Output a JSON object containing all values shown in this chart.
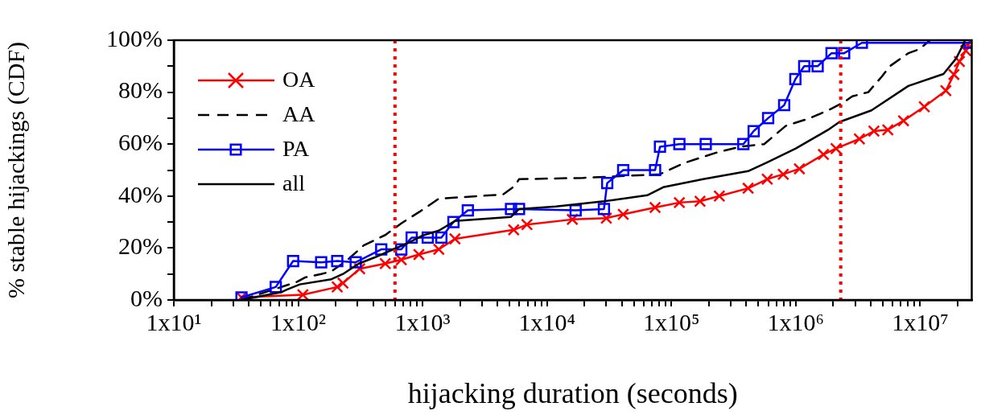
{
  "chart_data": {
    "type": "line",
    "xlabel": "hijacking duration (seconds)",
    "ylabel": "% stable hijackings (CDF)",
    "log": "x",
    "xlim": [
      10,
      26000000
    ],
    "ylim": [
      0,
      100
    ],
    "xticks": [
      {
        "value": 10,
        "label": "1x10¹"
      },
      {
        "value": 20,
        "label": null
      },
      {
        "value": 30,
        "label": null
      },
      {
        "value": 40,
        "label": null
      },
      {
        "value": 50,
        "label": null
      },
      {
        "value": 60,
        "label": null
      },
      {
        "value": 70,
        "label": null
      },
      {
        "value": 80,
        "label": null
      },
      {
        "value": 90,
        "label": null
      },
      {
        "value": 100,
        "label": "1x10²"
      },
      {
        "value": 200,
        "label": null
      },
      {
        "value": 300,
        "label": null
      },
      {
        "value": 400,
        "label": null
      },
      {
        "value": 500,
        "label": null
      },
      {
        "value": 600,
        "label": null
      },
      {
        "value": 700,
        "label": null
      },
      {
        "value": 800,
        "label": null
      },
      {
        "value": 900,
        "label": null
      },
      {
        "value": 1000,
        "label": "1x10³"
      },
      {
        "value": 2000,
        "label": null
      },
      {
        "value": 3000,
        "label": null
      },
      {
        "value": 4000,
        "label": null
      },
      {
        "value": 5000,
        "label": null
      },
      {
        "value": 6000,
        "label": null
      },
      {
        "value": 7000,
        "label": null
      },
      {
        "value": 8000,
        "label": null
      },
      {
        "value": 9000,
        "label": null
      },
      {
        "value": 10000,
        "label": "1x10⁴"
      },
      {
        "value": 20000,
        "label": null
      },
      {
        "value": 30000,
        "label": null
      },
      {
        "value": 40000,
        "label": null
      },
      {
        "value": 50000,
        "label": null
      },
      {
        "value": 60000,
        "label": null
      },
      {
        "value": 70000,
        "label": null
      },
      {
        "value": 80000,
        "label": null
      },
      {
        "value": 90000,
        "label": null
      },
      {
        "value": 100000,
        "label": "1x10⁵"
      },
      {
        "value": 200000,
        "label": null
      },
      {
        "value": 300000,
        "label": null
      },
      {
        "value": 400000,
        "label": null
      },
      {
        "value": 500000,
        "label": null
      },
      {
        "value": 600000,
        "label": null
      },
      {
        "value": 700000,
        "label": null
      },
      {
        "value": 800000,
        "label": null
      },
      {
        "value": 900000,
        "label": null
      },
      {
        "value": 1000000,
        "label": "1x10⁶"
      },
      {
        "value": 2000000,
        "label": null
      },
      {
        "value": 3000000,
        "label": null
      },
      {
        "value": 4000000,
        "label": null
      },
      {
        "value": 5000000,
        "label": null
      },
      {
        "value": 6000000,
        "label": null
      },
      {
        "value": 7000000,
        "label": null
      },
      {
        "value": 8000000,
        "label": null
      },
      {
        "value": 9000000,
        "label": null
      },
      {
        "value": 10000000,
        "label": "1x10⁷"
      },
      {
        "value": 20000000,
        "label": null
      }
    ],
    "yticks": [
      {
        "value": 0,
        "label": "0%"
      },
      {
        "value": 10,
        "label": null
      },
      {
        "value": 20,
        "label": "20%"
      },
      {
        "value": 30,
        "label": null
      },
      {
        "value": 40,
        "label": "40%"
      },
      {
        "value": 50,
        "label": null
      },
      {
        "value": 60,
        "label": "60%"
      },
      {
        "value": 70,
        "label": null
      },
      {
        "value": 80,
        "label": "80%"
      },
      {
        "value": 90,
        "label": null
      },
      {
        "value": 100,
        "label": "100%"
      }
    ],
    "grid": false,
    "legend": "top left",
    "ref_lines": [
      {
        "axis": "x",
        "value": 600,
        "color": "#ff0000",
        "line_style": "dotted"
      },
      {
        "axis": "x",
        "value": 2300000,
        "color": "#ff0000",
        "line_style": "dotted"
      }
    ],
    "series": [
      {
        "name": "OA",
        "color": "#ff0000",
        "marker": "cross",
        "line_style": "solid",
        "x": [
          35,
          109,
          206,
          229,
          312,
          501,
          674,
          934,
          1350,
          1820,
          5400,
          6900,
          16000,
          30000,
          41000,
          74000,
          116000,
          170000,
          243000,
          414000,
          590000,
          794000,
          1070000,
          1670000,
          2110000,
          3250000,
          4250000,
          5500000,
          7350000,
          10800000,
          16100000,
          18700000,
          20700000,
          23300000,
          25200000
        ],
        "values": [
          1,
          2,
          5,
          6.5,
          12,
          14,
          15.5,
          17.5,
          19.5,
          23.5,
          27,
          29,
          31,
          31.5,
          33,
          35.6,
          37.5,
          38,
          40,
          43,
          46.5,
          48.4,
          50.5,
          56,
          58.3,
          62,
          65,
          65.5,
          69,
          74.4,
          80.6,
          86.8,
          91.8,
          96,
          99.5
        ]
      },
      {
        "name": "AA",
        "color": "#000000",
        "marker": "none",
        "line_style": "dashed",
        "x": [
          35,
          98,
          114,
          153,
          185,
          250,
          336,
          501,
          674,
          949,
          1350,
          4430,
          5530,
          5960,
          19500,
          81000,
          126000,
          229000,
          357000,
          557000,
          830000,
          1300000,
          1820000,
          2450000,
          2850000,
          3830000,
          4920000,
          5710000,
          8040000,
          9900000,
          12000000
        ],
        "values": [
          0,
          7,
          8.7,
          10,
          11,
          15.5,
          21,
          25,
          29.5,
          34,
          39,
          40.6,
          44,
          46.5,
          47,
          48.4,
          52.7,
          56.7,
          59,
          60,
          67,
          70,
          73,
          76.2,
          78.4,
          80,
          86,
          90,
          95,
          96.6,
          100
        ]
      },
      {
        "name": "PA",
        "color": "#0000ff",
        "marker": "square",
        "line_style": "solid",
        "x": [
          35,
          66,
          91,
          153,
          206,
          290,
          465,
          674,
          817,
          1100,
          1415,
          1770,
          2310,
          5140,
          5960,
          17000,
          28700,
          30500,
          41000,
          74000,
          81000,
          116000,
          189000,
          379000,
          459000,
          600000,
          807000,
          993000,
          1170000,
          1500000,
          1940000,
          2450000,
          3400000,
          25000000
        ],
        "values": [
          1,
          5,
          15,
          14.5,
          15,
          14.5,
          19.5,
          19.5,
          24,
          24,
          24,
          30,
          34.5,
          35,
          35,
          34.5,
          35,
          45,
          50,
          50,
          59,
          60,
          60,
          60,
          65,
          70,
          75,
          85,
          90,
          90,
          95,
          95,
          99,
          99
        ]
      },
      {
        "name": "all",
        "color": "#000000",
        "marker": "none",
        "line_style": "solid",
        "x": [
          35,
          73,
          81,
          103,
          185,
          229,
          307,
          413,
          581,
          748,
          1000,
          1350,
          1820,
          5140,
          5960,
          11800,
          28700,
          64000,
          86000,
          180000,
          414000,
          590000,
          1000000,
          1820000,
          2240000,
          4060000,
          8040000,
          15400000,
          19500000,
          22700000
        ],
        "values": [
          0,
          3,
          4,
          6,
          8,
          10,
          14,
          16.4,
          19.5,
          21.7,
          24.8,
          26.7,
          30.4,
          32,
          35,
          36,
          38,
          40.3,
          43.4,
          46.5,
          49.6,
          53,
          58.3,
          65.5,
          68.5,
          73,
          82.4,
          87,
          93,
          99.3
        ]
      }
    ]
  }
}
